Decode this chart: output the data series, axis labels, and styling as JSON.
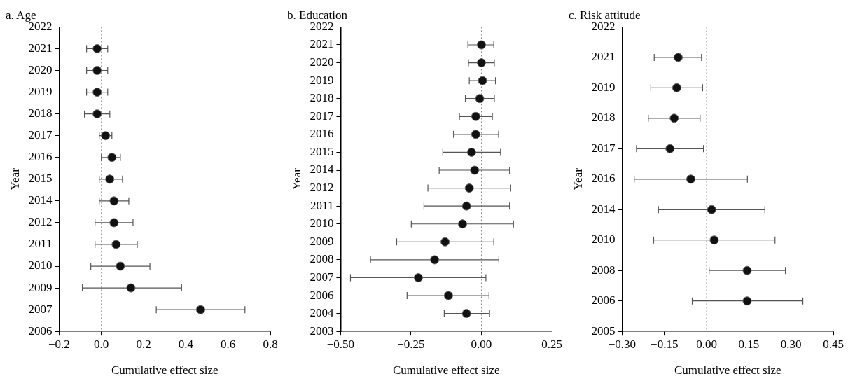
{
  "chart_data": [
    {
      "type": "scatter",
      "orientation": "horizontal",
      "title": "a. Age",
      "xlabel": "Cumulative effect size",
      "ylabel": "Year",
      "color": "#111111",
      "marker": "circle",
      "categories": [
        "2022",
        "2021",
        "2020",
        "2019",
        "2018",
        "2017",
        "2016",
        "2015",
        "2014",
        "2012",
        "2011",
        "2010",
        "2009",
        "2007",
        "2006"
      ],
      "values": [
        null,
        -0.02,
        -0.02,
        -0.02,
        -0.02,
        0.02,
        0.05,
        0.04,
        0.06,
        0.06,
        0.07,
        0.09,
        0.14,
        0.47,
        null
      ],
      "errors": [
        null,
        [
          -0.07,
          0.03
        ],
        [
          -0.07,
          0.03
        ],
        [
          -0.07,
          0.03
        ],
        [
          -0.08,
          0.04
        ],
        [
          -0.01,
          0.05
        ],
        [
          0.0,
          0.09
        ],
        [
          -0.01,
          0.1
        ],
        [
          -0.01,
          0.13
        ],
        [
          -0.03,
          0.15
        ],
        [
          -0.03,
          0.17
        ],
        [
          -0.05,
          0.23
        ],
        [
          -0.09,
          0.38
        ],
        [
          0.26,
          0.68
        ],
        null
      ],
      "xlim": [
        -0.2,
        0.8
      ],
      "xticks": [
        {
          "value": -0.2,
          "label": "−0.2"
        },
        {
          "value": 0,
          "label": "0.0"
        },
        0.2,
        0.4,
        0.6,
        0.8
      ],
      "ref_lines": [
        {
          "axis": "x",
          "value": 0,
          "color": "#888888",
          "line_style": "dotted"
        }
      ]
    },
    {
      "type": "scatter",
      "orientation": "horizontal",
      "title": "b. Education",
      "xlabel": "Cumulative effect size",
      "ylabel": "Year",
      "color": "#111111",
      "marker": "circle",
      "categories": [
        "2022",
        "2021",
        "2020",
        "2019",
        "2018",
        "2017",
        "2016",
        "2015",
        "2014",
        "2012",
        "2011",
        "2010",
        "2009",
        "2008",
        "2007",
        "2006",
        "2004",
        "2003"
      ],
      "values": [
        null,
        0.0,
        0.0,
        0.004,
        -0.006,
        -0.02,
        -0.02,
        -0.035,
        -0.024,
        -0.043,
        -0.053,
        -0.067,
        -0.129,
        -0.166,
        -0.224,
        -0.117,
        -0.053,
        null
      ],
      "errors": [
        null,
        [
          -0.048,
          0.044
        ],
        [
          -0.046,
          0.046
        ],
        [
          -0.043,
          0.05
        ],
        [
          -0.057,
          0.046
        ],
        [
          -0.078,
          0.039
        ],
        [
          -0.099,
          0.061
        ],
        [
          -0.137,
          0.068
        ],
        [
          -0.15,
          0.1
        ],
        [
          -0.19,
          0.104
        ],
        [
          -0.204,
          0.1
        ],
        [
          -0.249,
          0.114
        ],
        [
          -0.301,
          0.044
        ],
        [
          -0.394,
          0.062
        ],
        [
          -0.465,
          0.016
        ],
        [
          -0.264,
          0.027
        ],
        [
          -0.132,
          0.029
        ],
        null
      ],
      "xlim": [
        -0.5,
        0.25
      ],
      "xticks": [
        {
          "value": -0.5,
          "label": "−0.50"
        },
        {
          "value": -0.25,
          "label": "−0.25"
        },
        {
          "value": 0,
          "label": "0.00"
        },
        0.25
      ],
      "ref_lines": [
        {
          "axis": "x",
          "value": 0,
          "color": "#888888",
          "line_style": "dotted"
        }
      ]
    },
    {
      "type": "scatter",
      "orientation": "horizontal",
      "title": "c. Risk attitude",
      "xlabel": "Cumulative effect size",
      "ylabel": "Year",
      "color": "#111111",
      "marker": "circle",
      "categories": [
        "2022",
        "2021",
        "2019",
        "2018",
        "2017",
        "2016",
        "2014",
        "2010",
        "2008",
        "2006",
        "2005"
      ],
      "values": [
        null,
        -0.101,
        -0.106,
        -0.115,
        -0.13,
        -0.056,
        0.018,
        0.027,
        0.144,
        0.144,
        null
      ],
      "errors": [
        null,
        [
          -0.186,
          -0.018
        ],
        [
          -0.198,
          -0.014
        ],
        [
          -0.207,
          -0.023
        ],
        [
          -0.249,
          -0.011
        ],
        [
          -0.257,
          0.145
        ],
        [
          -0.171,
          0.207
        ],
        [
          -0.188,
          0.243
        ],
        [
          0.009,
          0.28
        ],
        [
          -0.051,
          0.342
        ],
        null
      ],
      "xlim": [
        -0.3,
        0.45
      ],
      "xticks": [
        {
          "value": -0.3,
          "label": "−0.30"
        },
        {
          "value": -0.15,
          "label": "−0.15"
        },
        {
          "value": 0,
          "label": "0.00"
        },
        0.15,
        {
          "value": 0.3,
          "label": "0.30"
        },
        0.45
      ],
      "ref_lines": [
        {
          "axis": "x",
          "value": 0,
          "color": "#888888",
          "line_style": "dotted"
        }
      ]
    }
  ]
}
